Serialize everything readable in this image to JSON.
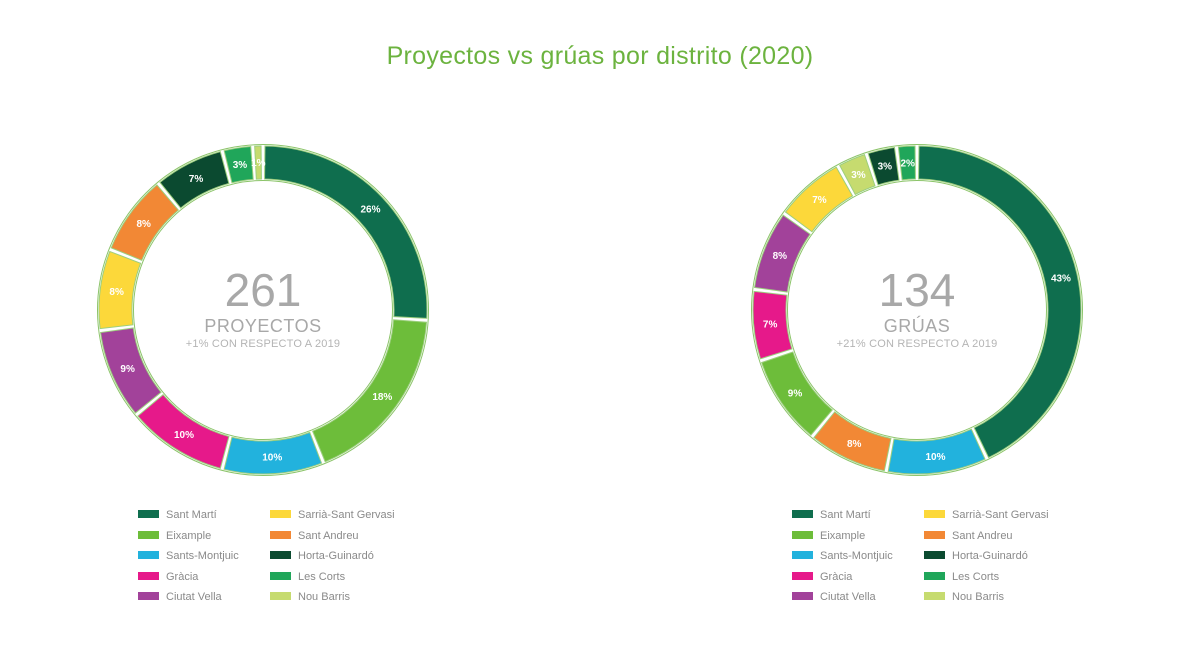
{
  "title": "Proyectos vs grúas por distrito (2020)",
  "colors": {
    "title": "#6cb33f",
    "Sant Martí": "#0f6e4e",
    "Eixample": "#6dbd3a",
    "Sants-Montjuïc": "#22b2dd",
    "Gràcia": "#e6198a",
    "Ciutat Vella": "#a2429a",
    "Sarrià-Sant Gervasi": "#fcd83a",
    "Sant Andreu": "#f28835",
    "Horta-Guinardó": "#0b4a30",
    "Les Corts": "#20a65a",
    "Nou Barris": "#c6db6f"
  },
  "chart_data": [
    {
      "type": "pie",
      "variant": "donut",
      "center_value": "261",
      "center_label": "PROYECTOS",
      "center_sub": "+1% CON RESPECTO A 2019",
      "categories": [
        "Sant Martí",
        "Eixample",
        "Sants-Montjuïc",
        "Gràcia",
        "Ciutat Vella",
        "Sarrià-Sant Gervasi",
        "Sant Andreu",
        "Horta-Guinardó",
        "Les Corts",
        "Nou Barris"
      ],
      "values": [
        26,
        18,
        10,
        10,
        9,
        8,
        8,
        7,
        3,
        1
      ],
      "labels": [
        "26%",
        "18%",
        "10%",
        "10%",
        "9%",
        "8%",
        "8%",
        "7%",
        "3%",
        "1%"
      ],
      "legend": [
        [
          "Sant Martí",
          "Sarrià-Sant Gervasi"
        ],
        [
          "Eixample",
          "Sant Andreu"
        ],
        [
          "Sants-Montjuic",
          "Horta-Guinardó"
        ],
        [
          "Gràcia",
          "Les Corts"
        ],
        [
          "Ciutat Vella",
          "Nou Barris"
        ]
      ]
    },
    {
      "type": "pie",
      "variant": "donut",
      "center_value": "134",
      "center_label": "GRÚAS",
      "center_sub": "+21% CON RESPECTO A 2019",
      "categories": [
        "Sant Martí",
        "Sants-Montjuïc",
        "Sant Andreu",
        "Eixample",
        "Gràcia",
        "Ciutat Vella",
        "Sarrià-Sant Gervasi",
        "Nou Barris",
        "Horta-Guinardó",
        "Les Corts"
      ],
      "values": [
        43,
        10,
        8,
        9,
        7,
        8,
        7,
        3,
        3,
        2
      ],
      "labels": [
        "43%",
        "10%",
        "8%",
        "9%",
        "7%",
        "8%",
        "7%",
        "3%",
        "3%",
        "2%"
      ],
      "legend": [
        [
          "Sant Martí",
          "Sarrià-Sant Gervasi"
        ],
        [
          "Eixample",
          "Sant Andreu"
        ],
        [
          "Sants-Montjuic",
          "Horta-Guinardó"
        ],
        [
          "Gràcia",
          "Les Corts"
        ],
        [
          "Ciutat Vella",
          "Nou Barris"
        ]
      ]
    }
  ]
}
